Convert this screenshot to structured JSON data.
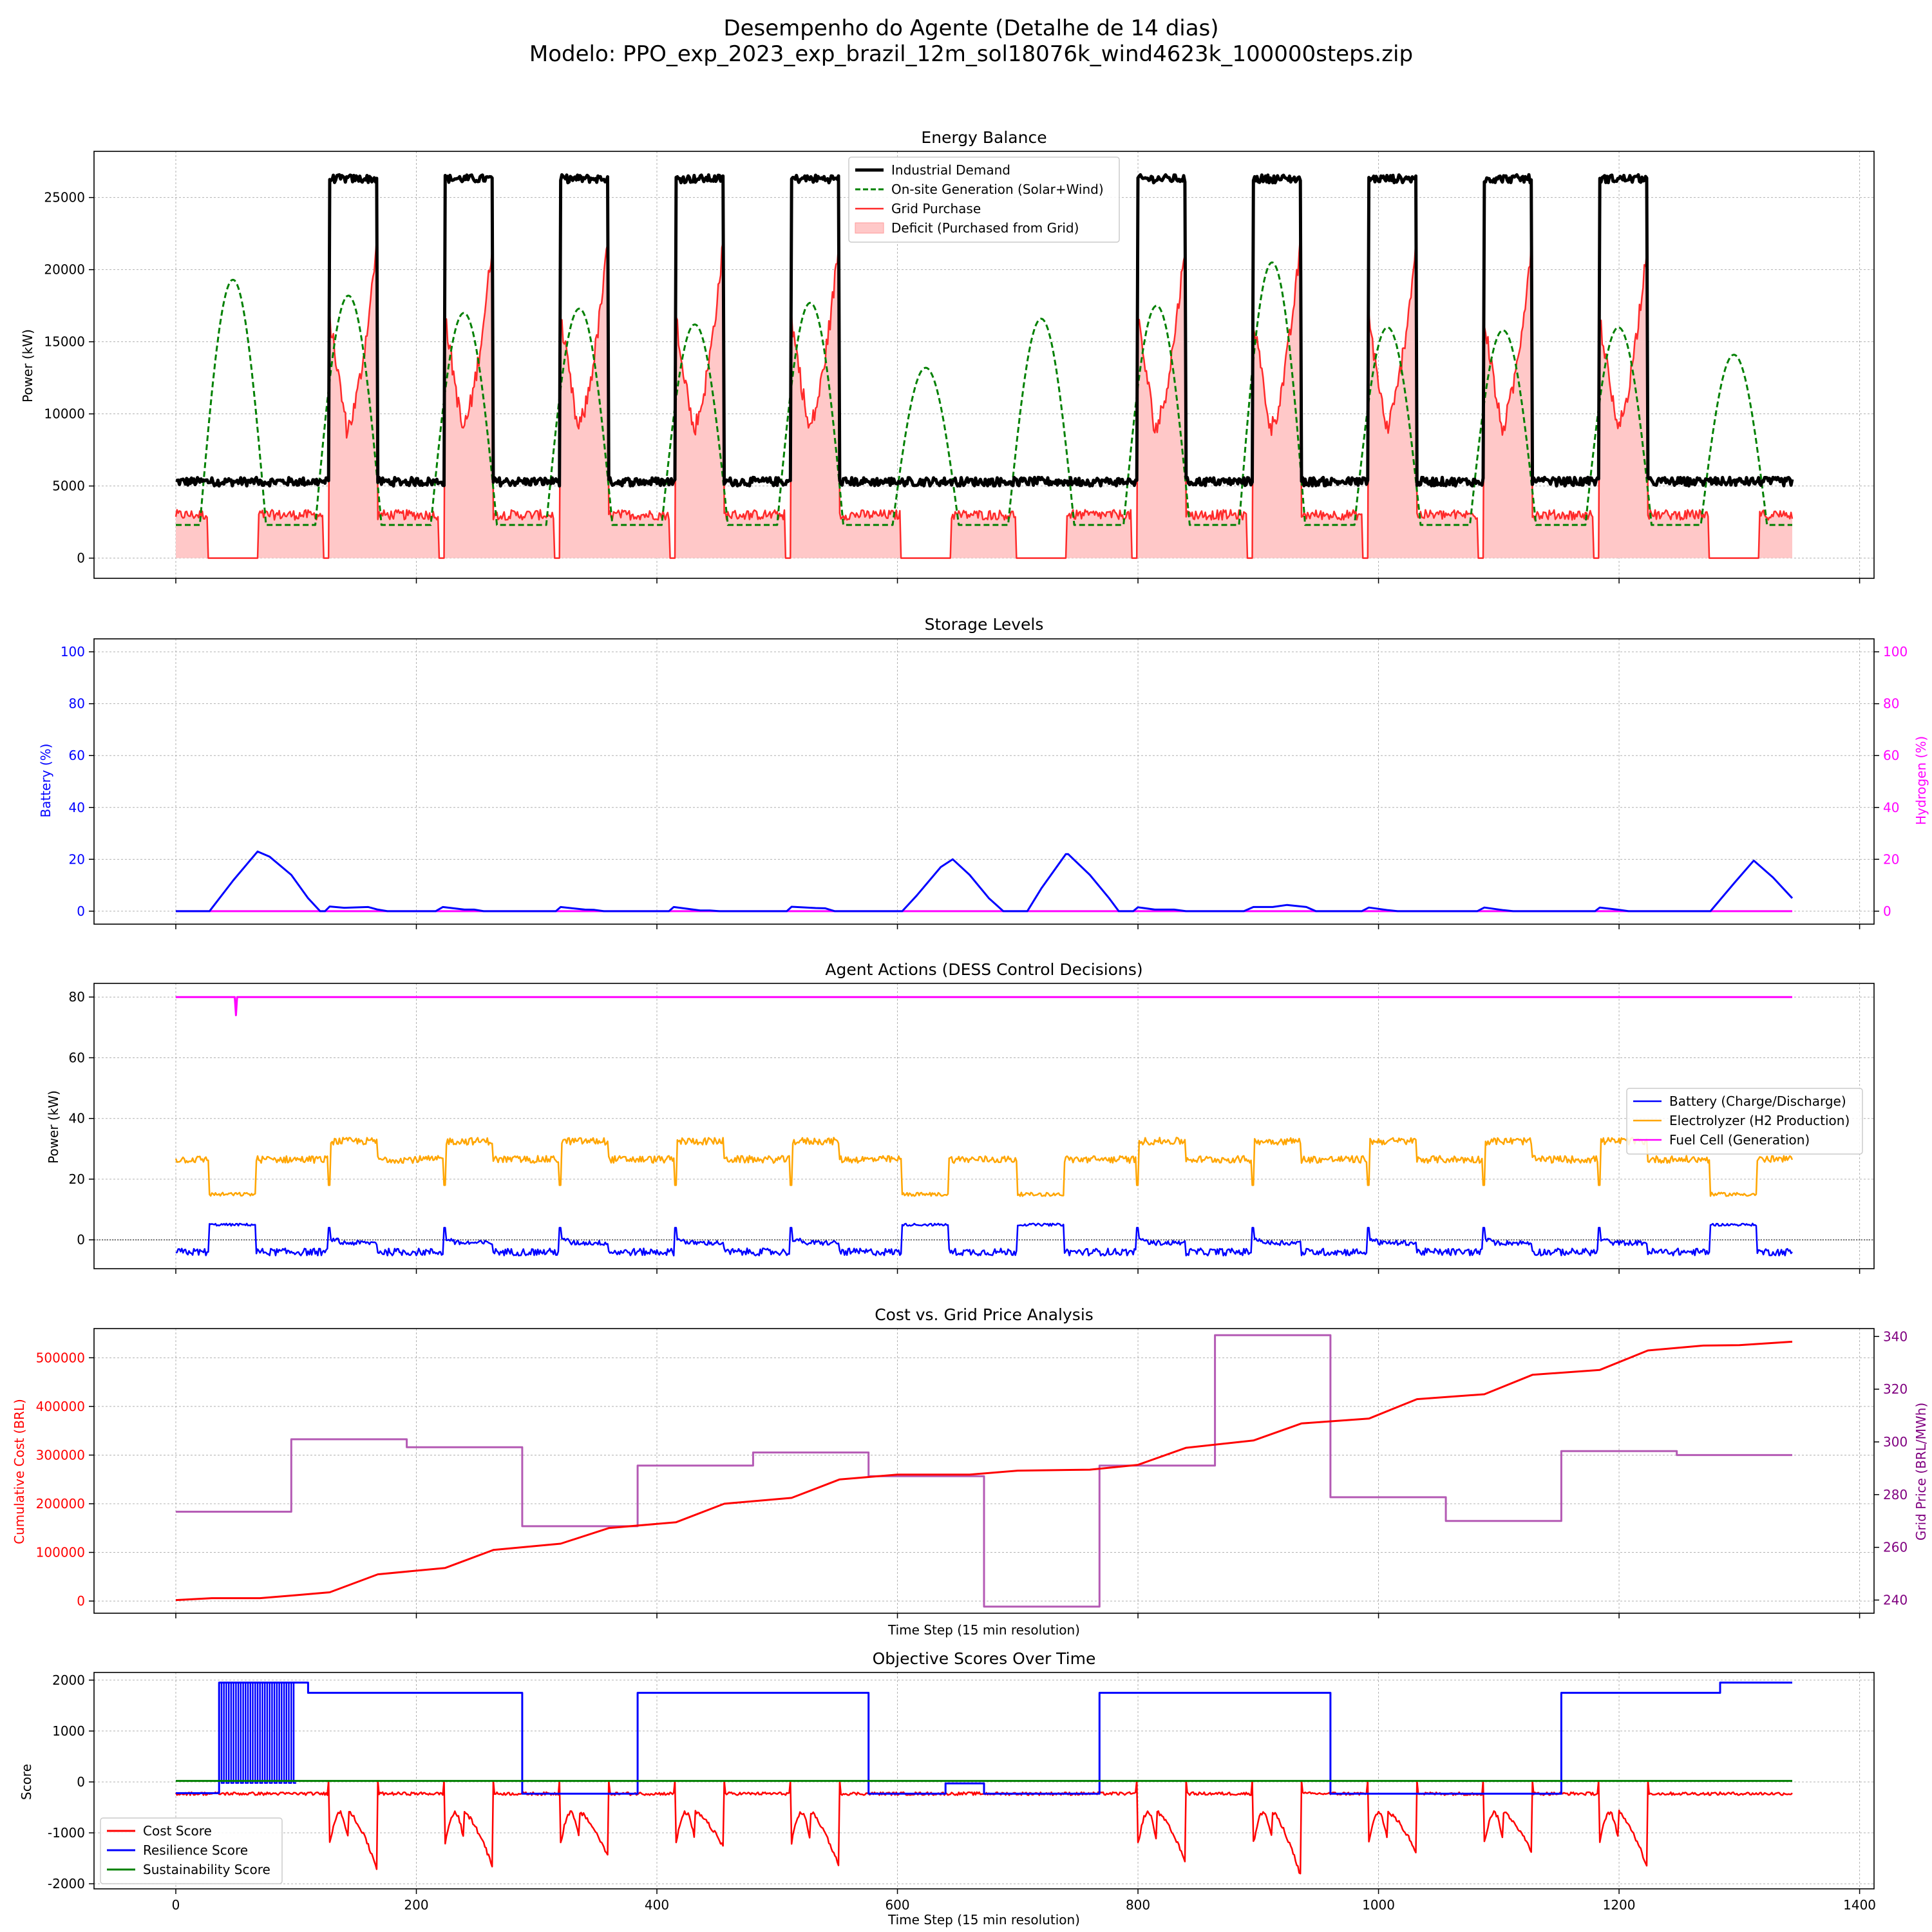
{
  "figure": {
    "title_line1": "Desempenho do Agente (Detalhe de 14 dias)",
    "title_line2": "Modelo: PPO_exp_2023_exp_brazil_12m_sol18076k_wind4623k_100000steps.zip"
  },
  "chart_data": [
    {
      "id": "energy",
      "type": "line",
      "title": "Energy Balance",
      "ylabel": "Power (kW)",
      "xlabel": "",
      "xlim": [
        -68,
        1412
      ],
      "ylim": [
        -1400,
        28200
      ],
      "xticks": [
        0,
        200,
        400,
        600,
        800,
        1000,
        1200,
        1400
      ],
      "yticks": [
        0,
        5000,
        10000,
        15000,
        20000,
        25000
      ],
      "grid": true,
      "legend_position": "top-center",
      "work_windows": [
        [
          128,
          168
        ],
        [
          224,
          264
        ],
        [
          320,
          360
        ],
        [
          416,
          456
        ],
        [
          512,
          552
        ],
        [
          800,
          840
        ],
        [
          896,
          936
        ],
        [
          992,
          1032
        ],
        [
          1088,
          1128
        ],
        [
          1184,
          1224
        ]
      ],
      "demand_levels": {
        "base": 5300,
        "peak": 26300
      },
      "series": [
        {
          "name": "Industrial Demand",
          "color": "#000000",
          "style": "solid",
          "width": 5
        },
        {
          "name": "On-site Generation (Solar+Wind)",
          "color": "#008000",
          "style": "dashed",
          "width": 3,
          "daily_peaks": [
            19300,
            18200,
            17000,
            17300,
            16200,
            17700,
            13200,
            16600,
            17500,
            20500,
            16000,
            15800,
            16000,
            14100
          ],
          "night_level": 2300
        },
        {
          "name": "Grid Purchase",
          "color": "#ff2a2a",
          "style": "solid",
          "width": 2.5,
          "peak_start": 16500,
          "peak_min": 9000,
          "peak_end": 22500,
          "offpeak_level": 3000
        },
        {
          "name": "Deficit (Purchased from Grid)",
          "color": "#ffc8c8",
          "style": "fill"
        }
      ]
    },
    {
      "id": "storage",
      "type": "line",
      "title": "Storage Levels",
      "ylabel": "Battery (%)",
      "y2label": "Hydrogen (%)",
      "xlim": [
        -68,
        1412
      ],
      "ylim": [
        -5,
        105
      ],
      "xticks": [
        0,
        200,
        400,
        600,
        800,
        1000,
        1200,
        1400
      ],
      "yticks": [
        0,
        20,
        40,
        60,
        80,
        100
      ],
      "y2ticks": [
        0,
        20,
        40,
        60,
        80,
        100
      ],
      "grid": true,
      "series": [
        {
          "name": "Battery",
          "color": "#0000ff",
          "x": [
            0,
            28,
            48,
            68,
            78,
            96,
            110,
            120,
            124,
            128,
            140,
            160,
            168,
            176,
            216,
            222,
            240,
            248,
            256,
            316,
            320,
            340,
            348,
            356,
            410,
            414,
            436,
            444,
            452,
            508,
            512,
            532,
            540,
            548,
            604,
            616,
            636,
            646,
            660,
            676,
            688,
            696,
            708,
            720,
            740,
            742,
            760,
            776,
            784,
            796,
            800,
            814,
            830,
            840,
            888,
            896,
            912,
            924,
            940,
            948,
            986,
            992,
            1008,
            1016,
            1082,
            1088,
            1104,
            1112,
            1180,
            1184,
            1200,
            1208,
            1276,
            1296,
            1312,
            1328,
            1344
          ],
          "y": [
            0,
            0,
            12,
            23,
            21,
            14,
            5,
            0,
            0,
            1.8,
            1.3,
            1.6,
            0.6,
            0,
            0,
            1.6,
            0.6,
            0.6,
            0,
            0,
            1.6,
            0.6,
            0.5,
            0,
            0,
            1.6,
            0.3,
            0.3,
            0,
            0,
            1.7,
            1.2,
            1.1,
            0,
            0,
            6,
            17,
            20,
            14,
            5,
            0,
            0,
            0,
            9,
            22,
            22,
            14,
            5,
            0,
            0,
            1.5,
            0.6,
            0.6,
            0,
            0,
            1.6,
            1.6,
            2.4,
            1.6,
            0,
            0,
            1.4,
            0.4,
            0,
            0,
            1.4,
            0.4,
            0,
            0,
            1.4,
            0.5,
            0,
            0,
            11,
            19.5,
            13,
            5
          ]
        },
        {
          "name": "Hydrogen",
          "color": "#ff00ff",
          "x": [
            0,
            1344
          ],
          "y": [
            0,
            0
          ]
        }
      ]
    },
    {
      "id": "actions",
      "type": "line",
      "title": "Agent Actions (DESS Control Decisions)",
      "ylabel": "Power (kW)",
      "xlim": [
        -68,
        1412
      ],
      "ylim": [
        -9.5,
        84.5
      ],
      "xticks": [
        0,
        200,
        400,
        600,
        800,
        1000,
        1200,
        1400
      ],
      "yticks": [
        0,
        20,
        40,
        60,
        80
      ],
      "grid": true,
      "zero_line": true,
      "legend_position": "center-right",
      "series": [
        {
          "name": "Battery (Charge/Discharge)",
          "color": "#0000ff"
        },
        {
          "name": "Electrolyzer (H2 Production)",
          "color": "#ffa500"
        },
        {
          "name": "Fuel Cell (Generation)",
          "color": "#ff00ff",
          "level": 80,
          "dip": {
            "x": 50,
            "y": 74
          }
        }
      ]
    },
    {
      "id": "cost",
      "type": "line",
      "title": "Cost vs. Grid Price Analysis",
      "xlabel": "Time Step (15 min resolution)",
      "ylabel": "Cumulative Cost (BRL)",
      "y2label": "Grid Price (BRL/MWh)",
      "xlim": [
        -68,
        1412
      ],
      "ylim": [
        -25000,
        560000
      ],
      "y2lim": [
        235,
        343
      ],
      "xticks": [
        0,
        200,
        400,
        600,
        800,
        1000,
        1200,
        1400
      ],
      "yticks": [
        0,
        100000,
        200000,
        300000,
        400000,
        500000
      ],
      "y2ticks": [
        240,
        260,
        280,
        300,
        320,
        340
      ],
      "grid": true,
      "series": [
        {
          "name": "Cumulative Cost",
          "color": "#ff0000",
          "axis": "left",
          "x": [
            0,
            30,
            70,
            100,
            128,
            168,
            224,
            264,
            320,
            360,
            416,
            456,
            512,
            552,
            600,
            660,
            700,
            760,
            800,
            840,
            896,
            936,
            992,
            1032,
            1088,
            1128,
            1184,
            1224,
            1270,
            1300,
            1344
          ],
          "y": [
            2000,
            6000,
            6000,
            12000,
            18000,
            55000,
            68000,
            105000,
            118000,
            150000,
            162000,
            200000,
            212000,
            250000,
            260000,
            260000,
            268000,
            270000,
            280000,
            315000,
            330000,
            365000,
            375000,
            415000,
            425000,
            465000,
            475000,
            515000,
            525000,
            526000,
            533000
          ]
        },
        {
          "name": "Grid Price",
          "color": "#b45ab4",
          "axis": "right",
          "step": true,
          "x": [
            0,
            96,
            96,
            192,
            192,
            288,
            288,
            384,
            384,
            480,
            480,
            576,
            576,
            672,
            672,
            768,
            768,
            864,
            864,
            960,
            960,
            1056,
            1056,
            1152,
            1152,
            1248,
            1248,
            1344
          ],
          "y": [
            273.5,
            273.5,
            301,
            301,
            298,
            298,
            268,
            268,
            291,
            291,
            296,
            296,
            287,
            287,
            237.5,
            237.5,
            291,
            291,
            340.5,
            340.5,
            279,
            279,
            270,
            270,
            296.5,
            296.5,
            295,
            295
          ]
        }
      ]
    },
    {
      "id": "scores",
      "type": "line",
      "title": "Objective Scores Over Time",
      "xlabel": "Time Step (15 min resolution)",
      "ylabel": "Score",
      "xlim": [
        -68,
        1412
      ],
      "ylim": [
        -2100,
        2150
      ],
      "xticks": [
        0,
        200,
        400,
        600,
        800,
        1000,
        1200,
        1400
      ],
      "yticks": [
        -2000,
        -1000,
        0,
        1000,
        2000
      ],
      "grid": true,
      "legend_position": "lower-left",
      "series": [
        {
          "name": "Cost Score",
          "color": "#ff0000",
          "base": -230,
          "dip_minima": [
            -1750,
            -1700,
            -1500,
            -1300,
            -1700,
            -1600,
            -1900,
            -1400,
            -1400,
            -1700
          ]
        },
        {
          "name": "Resilience Score",
          "color": "#0000ff",
          "x": [
            0,
            36,
            36,
            110,
            110,
            288,
            288,
            384,
            384,
            576,
            576,
            640,
            640,
            672,
            672,
            768,
            768,
            960,
            960,
            1152,
            1152,
            1284,
            1284,
            1344
          ],
          "y": [
            -220,
            -220,
            1950,
            1950,
            1750,
            1750,
            -230,
            -230,
            1750,
            1750,
            -230,
            -230,
            -30,
            -30,
            -230,
            -230,
            1750,
            1750,
            -230,
            -230,
            1750,
            1750,
            1950,
            1950
          ]
        },
        {
          "name": "Sustainability Score",
          "color": "#008000",
          "level": 20
        }
      ]
    }
  ]
}
